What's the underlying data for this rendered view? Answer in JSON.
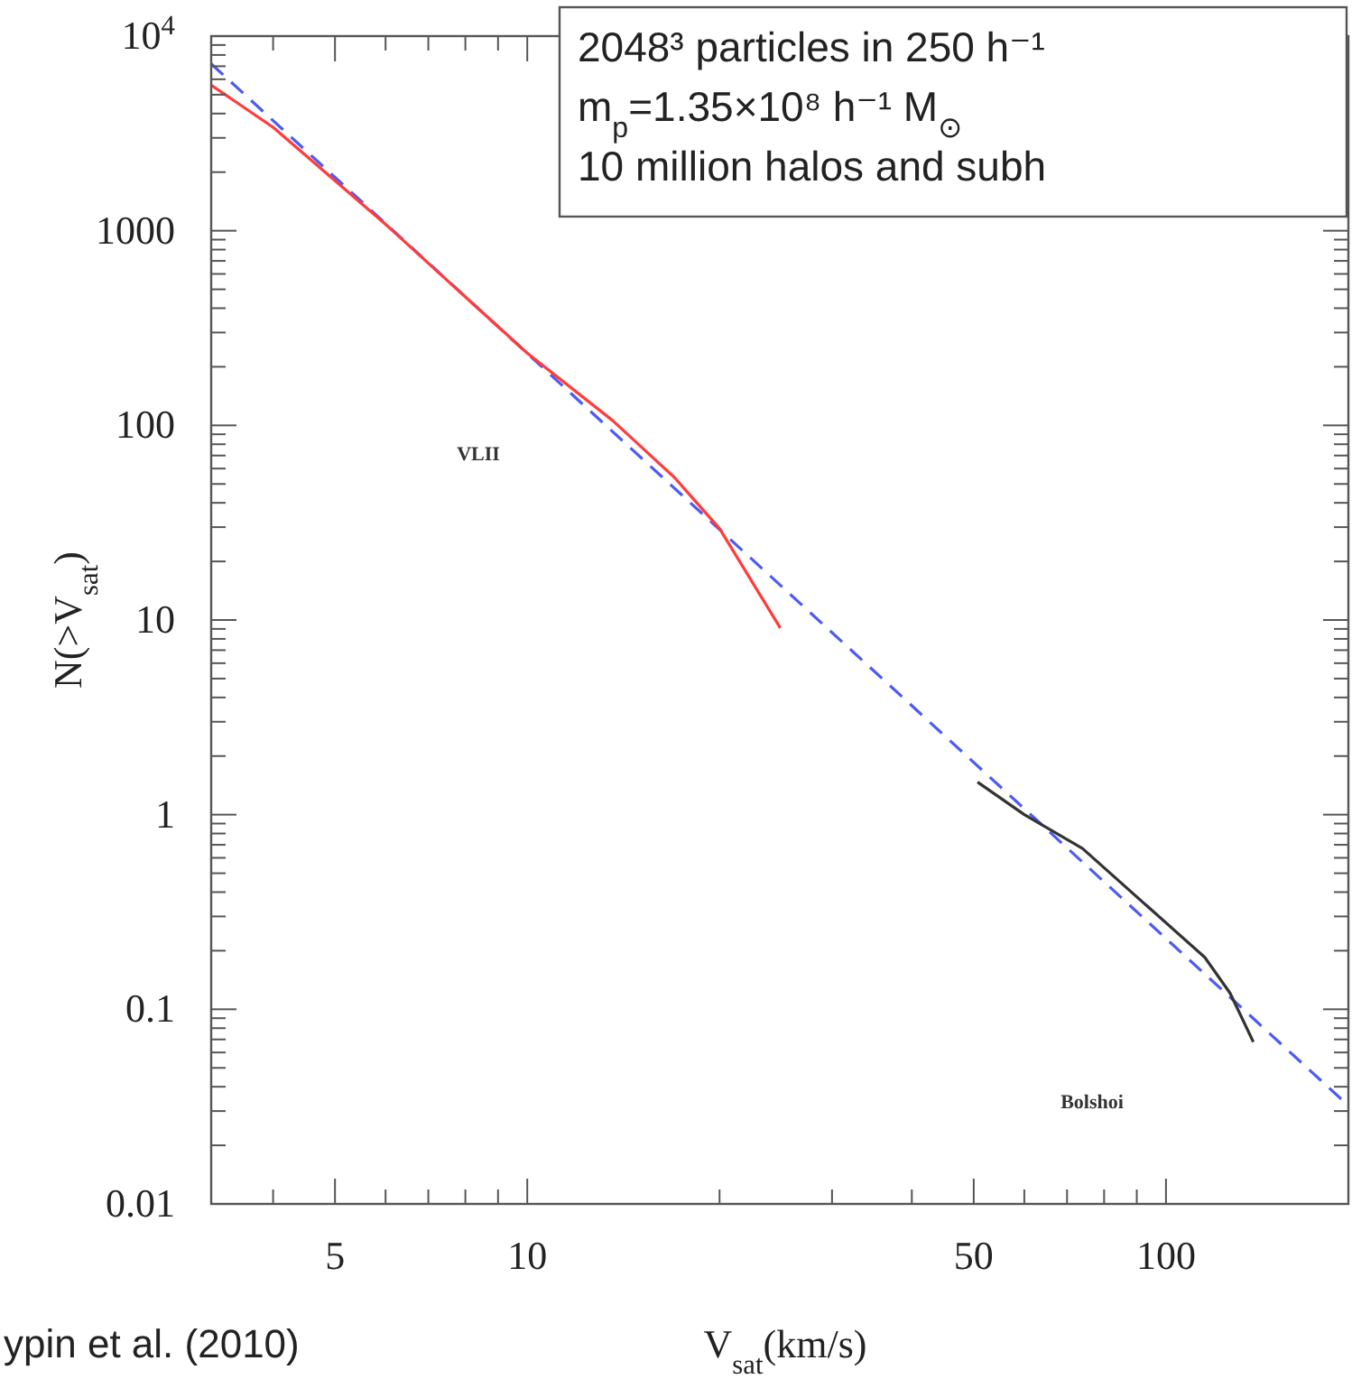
{
  "chart_data": {
    "type": "line",
    "xlabel": "V$_{sat}$(km/s)",
    "ylabel": "N(>V$_{sat}$)",
    "log": "xy",
    "grid": false,
    "xlim": [
      3.2,
      193
    ],
    "ylim": [
      0.01,
      10000
    ],
    "xticks": [
      {
        "value": 4,
        "label": null
      },
      5,
      {
        "value": 6,
        "label": null
      },
      {
        "value": 7,
        "label": null
      },
      {
        "value": 8,
        "label": null
      },
      {
        "value": 9,
        "label": null
      },
      10,
      {
        "value": 20,
        "label": null
      },
      {
        "value": 30,
        "label": null
      },
      {
        "value": 40,
        "label": null
      },
      50,
      {
        "value": 60,
        "label": null
      },
      {
        "value": 70,
        "label": null
      },
      {
        "value": 80,
        "label": null
      },
      {
        "value": 90,
        "label": null
      },
      100
    ],
    "yticks": [
      0.01,
      {
        "value": 0.02,
        "label": null
      },
      {
        "value": 0.03,
        "label": null
      },
      {
        "value": 0.04,
        "label": null
      },
      {
        "value": 0.05,
        "label": null
      },
      {
        "value": 0.06,
        "label": null
      },
      {
        "value": 0.07,
        "label": null
      },
      {
        "value": 0.08,
        "label": null
      },
      {
        "value": 0.09,
        "label": null
      },
      0.1,
      {
        "value": 0.2,
        "label": null
      },
      {
        "value": 0.3,
        "label": null
      },
      {
        "value": 0.4,
        "label": null
      },
      {
        "value": 0.5,
        "label": null
      },
      {
        "value": 0.6,
        "label": null
      },
      {
        "value": 0.7,
        "label": null
      },
      {
        "value": 0.8,
        "label": null
      },
      {
        "value": 0.9,
        "label": null
      },
      1,
      {
        "value": 2,
        "label": null
      },
      {
        "value": 3,
        "label": null
      },
      {
        "value": 4,
        "label": null
      },
      {
        "value": 5,
        "label": null
      },
      {
        "value": 6,
        "label": null
      },
      {
        "value": 7,
        "label": null
      },
      {
        "value": 8,
        "label": null
      },
      {
        "value": 9,
        "label": null
      },
      10,
      {
        "value": 20,
        "label": null
      },
      {
        "value": 30,
        "label": null
      },
      {
        "value": 40,
        "label": null
      },
      {
        "value": 50,
        "label": null
      },
      {
        "value": 60,
        "label": null
      },
      {
        "value": 70,
        "label": null
      },
      {
        "value": 80,
        "label": null
      },
      {
        "value": 90,
        "label": null
      },
      100,
      {
        "value": 200,
        "label": null
      },
      {
        "value": 300,
        "label": null
      },
      {
        "value": 400,
        "label": null
      },
      {
        "value": 500,
        "label": null
      },
      {
        "value": 600,
        "label": null
      },
      {
        "value": 700,
        "label": null
      },
      {
        "value": 800,
        "label": null
      },
      {
        "value": 900,
        "label": null
      },
      1000,
      {
        "value": 2000,
        "label": null
      },
      {
        "value": 3000,
        "label": null
      },
      {
        "value": 4000,
        "label": null
      },
      {
        "value": 5000,
        "label": null
      },
      {
        "value": 6000,
        "label": null
      },
      {
        "value": 7000,
        "label": null
      },
      {
        "value": 8000,
        "label": null
      },
      {
        "value": 9000,
        "label": null
      },
      {
        "value": 10000,
        "label": "10$^{4}$"
      }
    ],
    "series": [
      {
        "color": "#4b5cf5",
        "line_style": "dashed",
        "x": [
          3.2,
          193
        ],
        "values": [
          7200,
          0.032
        ]
      },
      {
        "color": "#ff3b3b",
        "line_style": "solid",
        "x": [
          3.2,
          4,
          6,
          10,
          13.6,
          17,
          20,
          24.9
        ],
        "values": [
          5600,
          3400,
          1080,
          235,
          106,
          54,
          29.5,
          9.1
        ]
      },
      {
        "color": "#333333",
        "line_style": "solid",
        "x": [
          50.7,
          60,
          74,
          115,
          126,
          137
        ],
        "values": [
          1.47,
          1.0,
          0.67,
          0.185,
          0.121,
          0.068
        ]
      }
    ],
    "annotations": [
      "2048³ particles in 250 h⁻¹",
      "m$_{p}$=1.35×10⁸ h⁻¹ M$_{⊙}$",
      "10 million halos and subh",
      "VLII",
      "Bolshoi",
      "ypin et al. (2010)"
    ]
  }
}
